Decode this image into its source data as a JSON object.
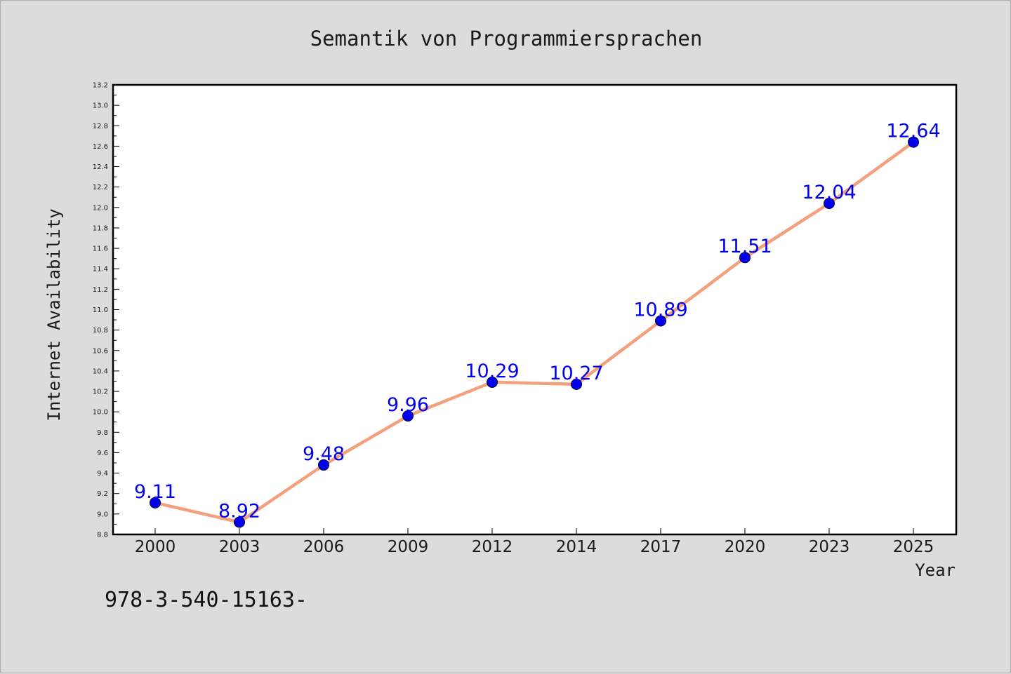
{
  "colors": {
    "background": "#dcdcdc",
    "plot_background": "#ffffff",
    "line": "#f4a07c",
    "marker": "#0000ee",
    "data_label": "#0000ee"
  },
  "footer": {
    "text": "978-3-540-15163-"
  },
  "chart_data": {
    "type": "line",
    "title": "Semantik von Programmiersprachen",
    "xlabel": "Year",
    "ylabel": "Internet Availability",
    "categories": [
      "2000",
      "2003",
      "2006",
      "2009",
      "2012",
      "2014",
      "2017",
      "2020",
      "2023",
      "2025"
    ],
    "series": [
      {
        "values": [
          9.11,
          8.92,
          9.48,
          9.96,
          10.29,
          10.27,
          10.89,
          11.51,
          12.04,
          12.64
        ],
        "labels": [
          "9.11",
          "8.92",
          "9.48",
          "9.96",
          "10.29",
          "10.27",
          "10.89",
          "11.51",
          "12.04",
          "12.64"
        ]
      }
    ],
    "ylim": [
      8.8,
      13.2
    ],
    "yticks": [
      "8.8",
      "9.0",
      "9.2",
      "9.4",
      "9.6",
      "9.8",
      "10.0",
      "10.2",
      "10.4",
      "10.6",
      "10.8",
      "11.0",
      "11.2",
      "11.4",
      "11.6",
      "11.8",
      "12.0",
      "12.2",
      "12.4",
      "12.6",
      "12.8",
      "13.0",
      "13.2"
    ],
    "grid": false,
    "legend": "none"
  }
}
